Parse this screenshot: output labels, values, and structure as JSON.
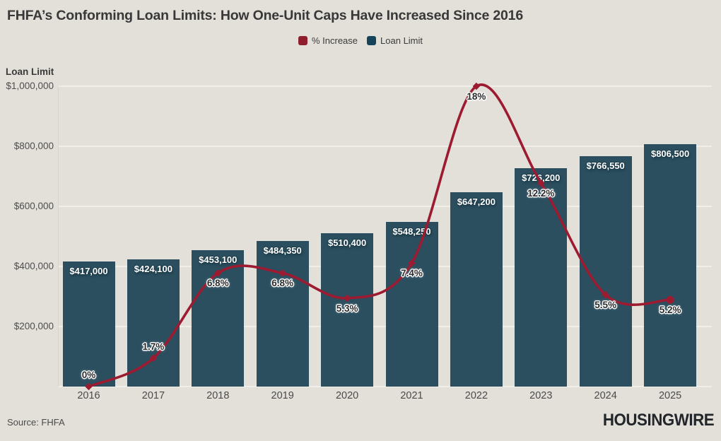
{
  "page": {
    "background": "#e3e0da"
  },
  "header": {
    "title": "FHFA’s Conforming Loan Limits: How One-Unit Caps Have Increased Since 2016"
  },
  "legend": {
    "items": [
      {
        "label": "% Increase",
        "color": "#8e1d2e"
      },
      {
        "label": "Loan Limit",
        "color": "#16455b"
      }
    ]
  },
  "axis": {
    "y_title": "Loan Limit",
    "y_ticks": [
      {
        "label": "$1,000,000",
        "value": 1000000
      },
      {
        "label": "$800,000",
        "value": 800000
      },
      {
        "label": "$600,000",
        "value": 600000
      },
      {
        "label": "$400,000",
        "value": 400000
      },
      {
        "label": "$200,000",
        "value": 200000
      }
    ],
    "x_labels": [
      "2016",
      "2017",
      "2018",
      "2019",
      "2020",
      "2021",
      "2022",
      "2023",
      "2024",
      "2025"
    ]
  },
  "footer": {
    "source": "Source: FHFA",
    "brand": "HOUSINGWIRE"
  },
  "chart_data": {
    "type": "bar+line",
    "title": "FHFA’s Conforming Loan Limits: How One-Unit Caps Have Increased Since 2016",
    "categories": [
      "2016",
      "2017",
      "2018",
      "2019",
      "2020",
      "2021",
      "2022",
      "2023",
      "2024",
      "2025"
    ],
    "series": [
      {
        "name": "Loan Limit",
        "type": "bar",
        "axis": "left",
        "color": "#2b4f5f",
        "values": [
          417000,
          424100,
          453100,
          484350,
          510400,
          548250,
          647200,
          726200,
          766550,
          806500
        ],
        "labels": [
          "$417,000",
          "$424,100",
          "$453,100",
          "$484,350",
          "$510,400",
          "$548,250",
          "$647,200",
          "$726,200",
          "$766,550",
          "$806,500"
        ]
      },
      {
        "name": "% Increase",
        "type": "line",
        "axis": "right",
        "color": "#9c1b31",
        "values": [
          0,
          1.7,
          6.8,
          6.8,
          5.3,
          7.4,
          18,
          12.2,
          5.5,
          5.2
        ],
        "labels": [
          "0%",
          "1.7%",
          "6.8%",
          "6.8%",
          "5.3%",
          "7.4%",
          "18%",
          "12.2%",
          "5.5%",
          "5.2%"
        ],
        "label_positions": [
          "above",
          "above",
          "below",
          "below",
          "below",
          "below",
          "below",
          "below",
          "below",
          "below"
        ]
      }
    ],
    "xlabel": "",
    "ylabel": "Loan Limit",
    "ylim": [
      0,
      1000000
    ],
    "y2lim": [
      0,
      18
    ],
    "grid": true,
    "legend_position": "top-center",
    "source": "Source: FHFA"
  }
}
